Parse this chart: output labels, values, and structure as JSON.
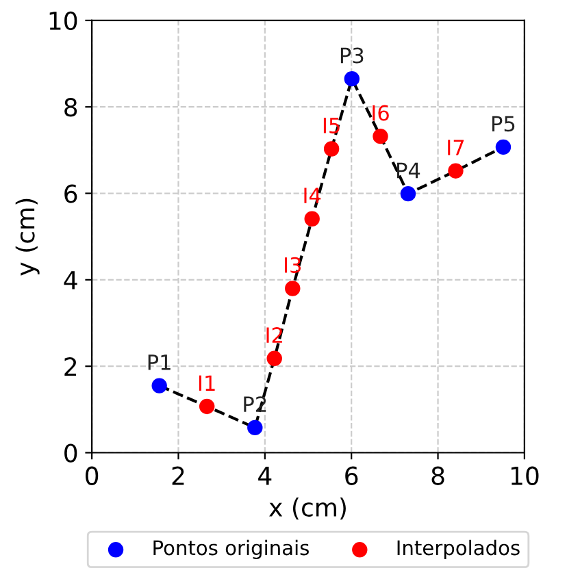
{
  "chart_data": {
    "type": "scatter",
    "xlabel": "x (cm)",
    "ylabel": "y (cm)",
    "xlim": [
      0,
      10
    ],
    "ylim": [
      0,
      10
    ],
    "xticks": [
      0,
      2,
      4,
      6,
      8,
      10
    ],
    "yticks": [
      0,
      2,
      4,
      6,
      8,
      10
    ],
    "grid": true,
    "legend": "bottom",
    "series": [
      {
        "type": "line",
        "color": "#000000",
        "line_style": "dashed",
        "x": [
          1.56,
          2.66,
          3.77,
          4.22,
          4.64,
          5.09,
          5.54,
          6.01,
          6.67,
          7.31,
          8.41,
          9.51
        ],
        "values": [
          1.55,
          1.07,
          0.58,
          2.18,
          3.8,
          5.41,
          7.03,
          8.65,
          7.32,
          5.99,
          6.52,
          7.07
        ]
      },
      {
        "name": "Pontos originais",
        "color": "#0000ff",
        "marker": "circle",
        "x": [
          1.56,
          3.77,
          6.01,
          7.31,
          9.51
        ],
        "values": [
          1.55,
          0.58,
          8.65,
          5.99,
          7.07
        ],
        "value_labels": [
          "P1",
          "P2",
          "P3",
          "P4",
          "P5"
        ]
      },
      {
        "name": "Interpolados",
        "color": "#ff0000",
        "marker": "circle",
        "x": [
          2.66,
          4.22,
          4.64,
          5.09,
          5.54,
          6.67,
          8.41
        ],
        "values": [
          1.07,
          2.18,
          3.8,
          5.41,
          7.03,
          7.32,
          6.52
        ],
        "value_labels": [
          "I1",
          "I2",
          "I3",
          "I4",
          "I5",
          "I6",
          "I7"
        ]
      }
    ]
  }
}
